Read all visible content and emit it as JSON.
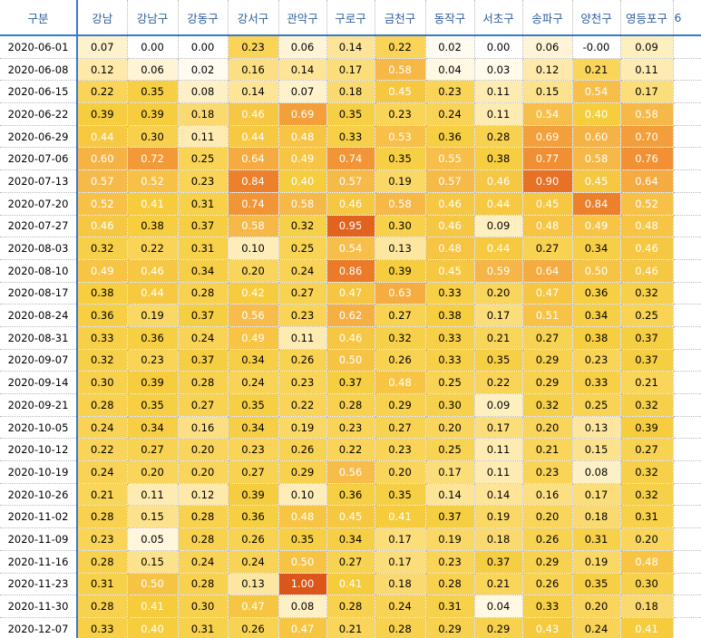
{
  "chart_data": {
    "type": "heatmap",
    "corner_label": "구분",
    "columns": [
      "강남",
      "강남구",
      "강동구",
      "강서구",
      "관악구",
      "구로구",
      "금천구",
      "동작구",
      "서초구",
      "송파구",
      "양천구",
      "영등포구",
      "6"
    ],
    "rows": [
      {
        "label": "2020-06-01",
        "values": [
          0.07,
          0.0,
          0.0,
          0.23,
          0.06,
          0.14,
          0.22,
          0.02,
          0.0,
          0.06,
          -0.0,
          0.09,
          null
        ]
      },
      {
        "label": "2020-06-08",
        "values": [
          0.12,
          0.06,
          0.02,
          0.16,
          0.14,
          0.17,
          0.58,
          0.04,
          0.03,
          0.12,
          0.21,
          0.11,
          null
        ]
      },
      {
        "label": "2020-06-15",
        "values": [
          0.22,
          0.35,
          0.08,
          0.14,
          0.07,
          0.18,
          0.45,
          0.23,
          0.11,
          0.15,
          0.54,
          0.17,
          null
        ]
      },
      {
        "label": "2020-06-22",
        "values": [
          0.39,
          0.39,
          0.18,
          0.46,
          0.69,
          0.35,
          0.23,
          0.24,
          0.11,
          0.54,
          0.4,
          0.58,
          null
        ]
      },
      {
        "label": "2020-06-29",
        "values": [
          0.44,
          0.3,
          0.11,
          0.44,
          0.48,
          0.33,
          0.53,
          0.36,
          0.28,
          0.69,
          0.6,
          0.7,
          null
        ]
      },
      {
        "label": "2020-07-06",
        "values": [
          0.6,
          0.72,
          0.25,
          0.64,
          0.49,
          0.74,
          0.35,
          0.55,
          0.38,
          0.77,
          0.58,
          0.76,
          null
        ]
      },
      {
        "label": "2020-07-13",
        "values": [
          0.57,
          0.52,
          0.23,
          0.84,
          0.4,
          0.57,
          0.19,
          0.57,
          0.46,
          0.9,
          0.45,
          0.64,
          null
        ]
      },
      {
        "label": "2020-07-20",
        "values": [
          0.52,
          0.41,
          0.31,
          0.74,
          0.58,
          0.46,
          0.58,
          0.46,
          0.44,
          0.45,
          0.84,
          0.52,
          null
        ]
      },
      {
        "label": "2020-07-27",
        "values": [
          0.46,
          0.38,
          0.37,
          0.58,
          0.32,
          0.95,
          0.3,
          0.46,
          0.09,
          0.48,
          0.49,
          0.48,
          null
        ]
      },
      {
        "label": "2020-08-03",
        "values": [
          0.32,
          0.22,
          0.31,
          0.1,
          0.25,
          0.54,
          0.13,
          0.48,
          0.44,
          0.27,
          0.34,
          0.46,
          null
        ]
      },
      {
        "label": "2020-08-10",
        "values": [
          0.49,
          0.46,
          0.34,
          0.2,
          0.24,
          0.86,
          0.39,
          0.45,
          0.59,
          0.64,
          0.5,
          0.46,
          null
        ]
      },
      {
        "label": "2020-08-17",
        "values": [
          0.38,
          0.44,
          0.28,
          0.42,
          0.27,
          0.47,
          0.63,
          0.33,
          0.2,
          0.47,
          0.36,
          0.32,
          null
        ]
      },
      {
        "label": "2020-08-24",
        "values": [
          0.36,
          0.19,
          0.37,
          0.56,
          0.23,
          0.62,
          0.27,
          0.38,
          0.17,
          0.51,
          0.34,
          0.25,
          null
        ]
      },
      {
        "label": "2020-08-31",
        "values": [
          0.33,
          0.36,
          0.24,
          0.49,
          0.11,
          0.46,
          0.32,
          0.33,
          0.21,
          0.27,
          0.38,
          0.37,
          null
        ]
      },
      {
        "label": "2020-09-07",
        "values": [
          0.32,
          0.23,
          0.37,
          0.34,
          0.26,
          0.5,
          0.26,
          0.33,
          0.35,
          0.29,
          0.23,
          0.37,
          null
        ]
      },
      {
        "label": "2020-09-14",
        "values": [
          0.3,
          0.39,
          0.28,
          0.24,
          0.23,
          0.37,
          0.48,
          0.25,
          0.22,
          0.29,
          0.33,
          0.21,
          null
        ]
      },
      {
        "label": "2020-09-21",
        "values": [
          0.28,
          0.35,
          0.27,
          0.35,
          0.22,
          0.28,
          0.29,
          0.3,
          0.09,
          0.32,
          0.25,
          0.32,
          null
        ]
      },
      {
        "label": "2020-10-05",
        "values": [
          0.24,
          0.34,
          0.16,
          0.34,
          0.19,
          0.23,
          0.27,
          0.2,
          0.17,
          0.2,
          0.13,
          0.39,
          null
        ]
      },
      {
        "label": "2020-10-12",
        "values": [
          0.22,
          0.27,
          0.2,
          0.23,
          0.26,
          0.22,
          0.23,
          0.25,
          0.11,
          0.21,
          0.15,
          0.27,
          null
        ]
      },
      {
        "label": "2020-10-19",
        "values": [
          0.24,
          0.2,
          0.2,
          0.27,
          0.29,
          0.56,
          0.2,
          0.17,
          0.11,
          0.23,
          0.08,
          0.32,
          null
        ]
      },
      {
        "label": "2020-10-26",
        "values": [
          0.21,
          0.11,
          0.12,
          0.39,
          0.1,
          0.36,
          0.35,
          0.14,
          0.14,
          0.16,
          0.17,
          0.32,
          null
        ]
      },
      {
        "label": "2020-11-02",
        "values": [
          0.28,
          0.15,
          0.28,
          0.36,
          0.48,
          0.45,
          0.41,
          0.37,
          0.19,
          0.2,
          0.18,
          0.31,
          null
        ]
      },
      {
        "label": "2020-11-09",
        "values": [
          0.23,
          0.05,
          0.28,
          0.26,
          0.35,
          0.34,
          0.17,
          0.19,
          0.18,
          0.26,
          0.31,
          0.2,
          null
        ]
      },
      {
        "label": "2020-11-16",
        "values": [
          0.28,
          0.15,
          0.24,
          0.24,
          0.5,
          0.27,
          0.17,
          0.23,
          0.37,
          0.29,
          0.19,
          0.48,
          null
        ]
      },
      {
        "label": "2020-11-23",
        "values": [
          0.31,
          0.5,
          0.28,
          0.13,
          1.0,
          0.41,
          0.18,
          0.28,
          0.21,
          0.26,
          0.35,
          0.3,
          null
        ]
      },
      {
        "label": "2020-11-30",
        "values": [
          0.28,
          0.41,
          0.3,
          0.47,
          0.08,
          0.28,
          0.24,
          0.31,
          0.04,
          0.33,
          0.2,
          0.18,
          null
        ]
      },
      {
        "label": "2020-12-07",
        "values": [
          0.33,
          0.4,
          0.31,
          0.26,
          0.47,
          0.21,
          0.28,
          0.29,
          0.29,
          0.43,
          0.24,
          0.41,
          null
        ]
      }
    ]
  }
}
